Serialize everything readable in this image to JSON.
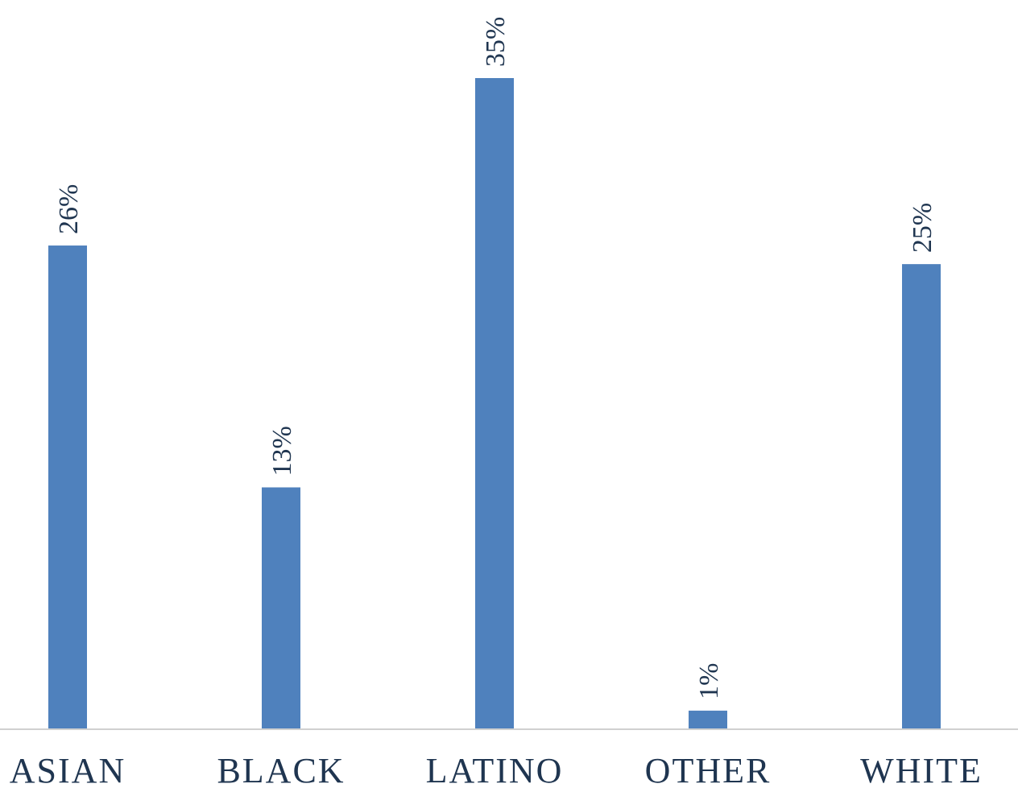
{
  "chart_data": {
    "type": "bar",
    "categories": [
      "ASIAN",
      "BLACK",
      "LATINO",
      "OTHER",
      "WHITE"
    ],
    "values": [
      26,
      13,
      35,
      1,
      25
    ],
    "value_labels": [
      "26%",
      "13%",
      "35%",
      "1%",
      "25%"
    ],
    "title": "",
    "xlabel": "",
    "ylabel": "",
    "ylim": [
      0,
      35
    ],
    "grid": false,
    "legend": "none",
    "bar_color": "#4f81bd",
    "axis_color": "#d0d0d0",
    "text_color": "#1f3550"
  }
}
